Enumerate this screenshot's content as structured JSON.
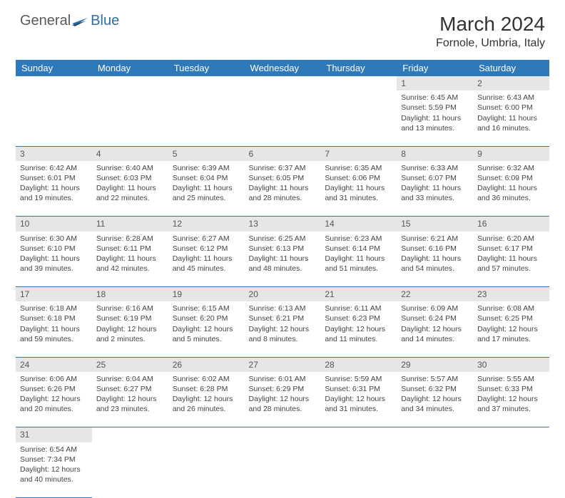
{
  "logo": {
    "prefix": "General",
    "suffix": "Blue"
  },
  "title": "March 2024",
  "location": "Fornole, Umbria, Italy",
  "colors": {
    "header_bg": "#2f79b9",
    "header_text": "#ffffff",
    "daynum_bg": "#e6e6e6",
    "row_border": "#2f79b9",
    "text": "#444444",
    "logo_gray": "#5a5a5a",
    "logo_blue": "#2f6fa8"
  },
  "weekdays": [
    "Sunday",
    "Monday",
    "Tuesday",
    "Wednesday",
    "Thursday",
    "Friday",
    "Saturday"
  ],
  "days": {
    "1": {
      "sunrise": "6:45 AM",
      "sunset": "5:59 PM",
      "daylight": "11 hours and 13 minutes."
    },
    "2": {
      "sunrise": "6:43 AM",
      "sunset": "6:00 PM",
      "daylight": "11 hours and 16 minutes."
    },
    "3": {
      "sunrise": "6:42 AM",
      "sunset": "6:01 PM",
      "daylight": "11 hours and 19 minutes."
    },
    "4": {
      "sunrise": "6:40 AM",
      "sunset": "6:03 PM",
      "daylight": "11 hours and 22 minutes."
    },
    "5": {
      "sunrise": "6:39 AM",
      "sunset": "6:04 PM",
      "daylight": "11 hours and 25 minutes."
    },
    "6": {
      "sunrise": "6:37 AM",
      "sunset": "6:05 PM",
      "daylight": "11 hours and 28 minutes."
    },
    "7": {
      "sunrise": "6:35 AM",
      "sunset": "6:06 PM",
      "daylight": "11 hours and 31 minutes."
    },
    "8": {
      "sunrise": "6:33 AM",
      "sunset": "6:07 PM",
      "daylight": "11 hours and 33 minutes."
    },
    "9": {
      "sunrise": "6:32 AM",
      "sunset": "6:09 PM",
      "daylight": "11 hours and 36 minutes."
    },
    "10": {
      "sunrise": "6:30 AM",
      "sunset": "6:10 PM",
      "daylight": "11 hours and 39 minutes."
    },
    "11": {
      "sunrise": "6:28 AM",
      "sunset": "6:11 PM",
      "daylight": "11 hours and 42 minutes."
    },
    "12": {
      "sunrise": "6:27 AM",
      "sunset": "6:12 PM",
      "daylight": "11 hours and 45 minutes."
    },
    "13": {
      "sunrise": "6:25 AM",
      "sunset": "6:13 PM",
      "daylight": "11 hours and 48 minutes."
    },
    "14": {
      "sunrise": "6:23 AM",
      "sunset": "6:14 PM",
      "daylight": "11 hours and 51 minutes."
    },
    "15": {
      "sunrise": "6:21 AM",
      "sunset": "6:16 PM",
      "daylight": "11 hours and 54 minutes."
    },
    "16": {
      "sunrise": "6:20 AM",
      "sunset": "6:17 PM",
      "daylight": "11 hours and 57 minutes."
    },
    "17": {
      "sunrise": "6:18 AM",
      "sunset": "6:18 PM",
      "daylight": "11 hours and 59 minutes."
    },
    "18": {
      "sunrise": "6:16 AM",
      "sunset": "6:19 PM",
      "daylight": "12 hours and 2 minutes."
    },
    "19": {
      "sunrise": "6:15 AM",
      "sunset": "6:20 PM",
      "daylight": "12 hours and 5 minutes."
    },
    "20": {
      "sunrise": "6:13 AM",
      "sunset": "6:21 PM",
      "daylight": "12 hours and 8 minutes."
    },
    "21": {
      "sunrise": "6:11 AM",
      "sunset": "6:23 PM",
      "daylight": "12 hours and 11 minutes."
    },
    "22": {
      "sunrise": "6:09 AM",
      "sunset": "6:24 PM",
      "daylight": "12 hours and 14 minutes."
    },
    "23": {
      "sunrise": "6:08 AM",
      "sunset": "6:25 PM",
      "daylight": "12 hours and 17 minutes."
    },
    "24": {
      "sunrise": "6:06 AM",
      "sunset": "6:26 PM",
      "daylight": "12 hours and 20 minutes."
    },
    "25": {
      "sunrise": "6:04 AM",
      "sunset": "6:27 PM",
      "daylight": "12 hours and 23 minutes."
    },
    "26": {
      "sunrise": "6:02 AM",
      "sunset": "6:28 PM",
      "daylight": "12 hours and 26 minutes."
    },
    "27": {
      "sunrise": "6:01 AM",
      "sunset": "6:29 PM",
      "daylight": "12 hours and 28 minutes."
    },
    "28": {
      "sunrise": "5:59 AM",
      "sunset": "6:31 PM",
      "daylight": "12 hours and 31 minutes."
    },
    "29": {
      "sunrise": "5:57 AM",
      "sunset": "6:32 PM",
      "daylight": "12 hours and 34 minutes."
    },
    "30": {
      "sunrise": "5:55 AM",
      "sunset": "6:33 PM",
      "daylight": "12 hours and 37 minutes."
    },
    "31": {
      "sunrise": "6:54 AM",
      "sunset": "7:34 PM",
      "daylight": "12 hours and 40 minutes."
    }
  },
  "labels": {
    "sunrise": "Sunrise:",
    "sunset": "Sunset:",
    "daylight": "Daylight:"
  }
}
